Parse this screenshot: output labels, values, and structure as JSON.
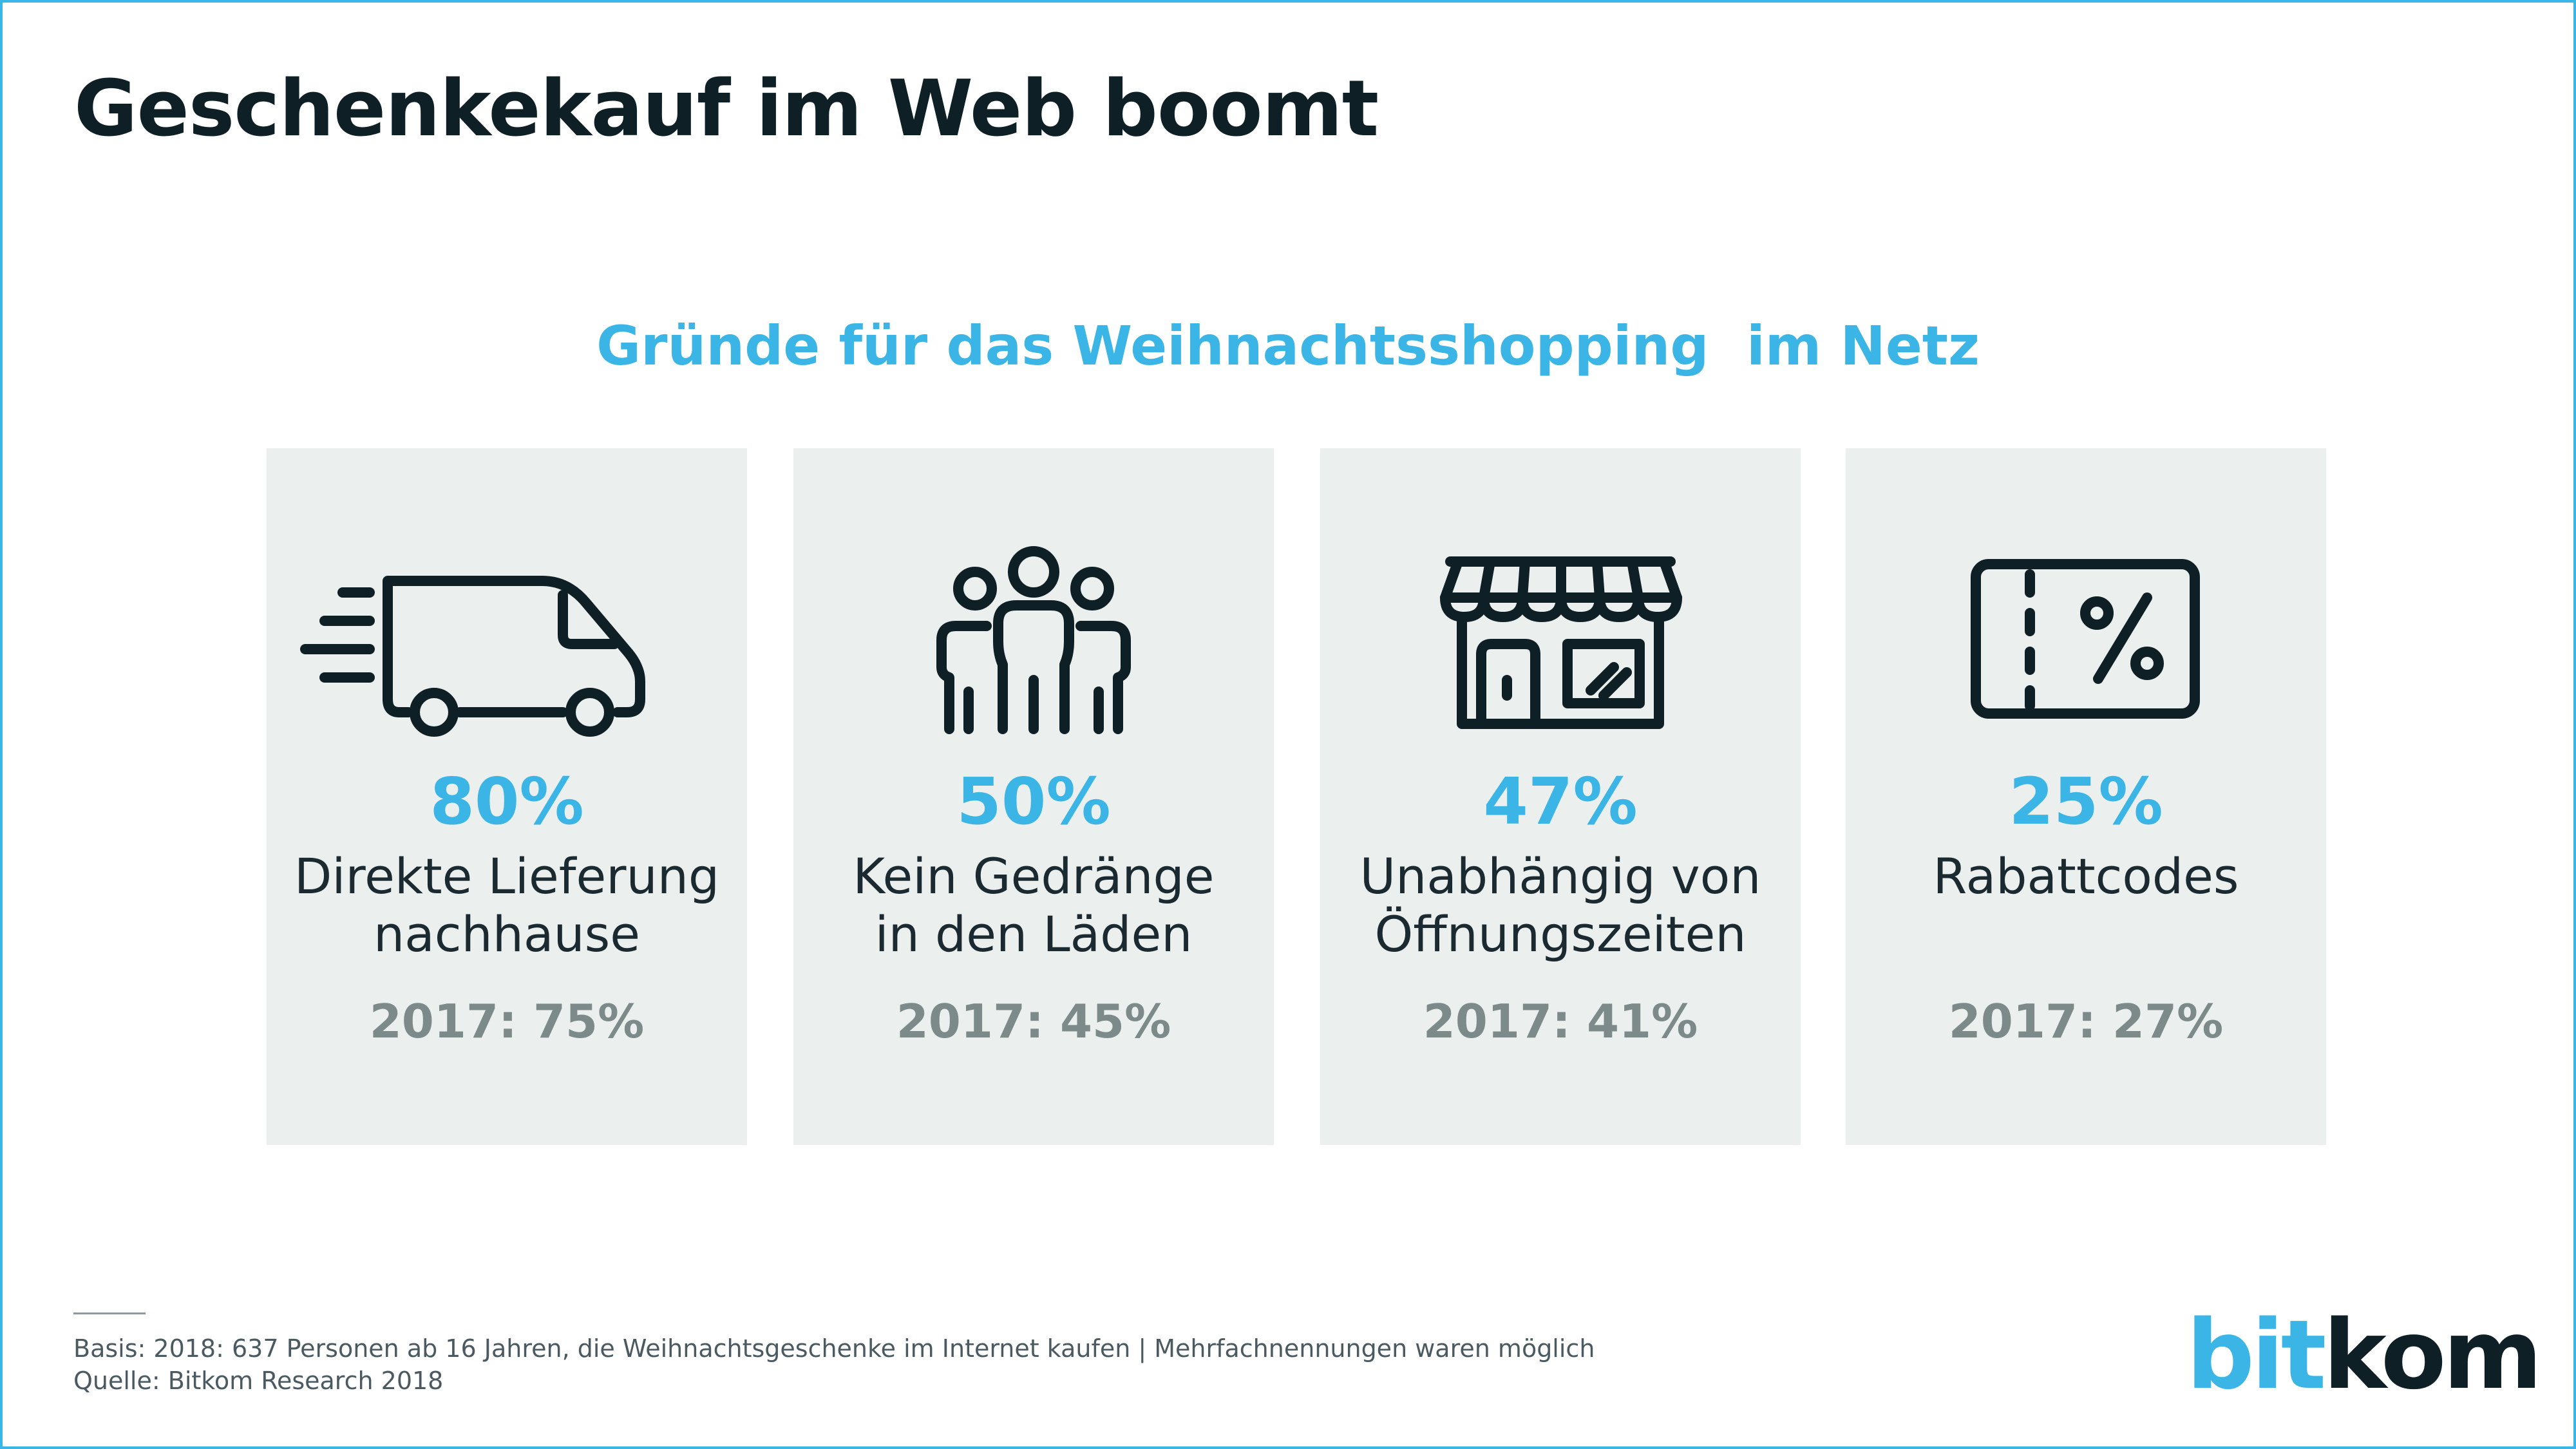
{
  "header": {
    "title": "Geschenkekauf im Web boomt"
  },
  "chart_data": {
    "type": "table",
    "title": "Gründe für das Weihnachtsshopping  im Netz",
    "categories": [
      "Direkte Lieferung nachhause",
      "Kein Gedränge in den Läden",
      "Unabhängig von Öffnungszeiten",
      "Rabattcodes"
    ],
    "series": [
      {
        "name": "2018",
        "values": [
          80,
          50,
          47,
          25
        ]
      },
      {
        "name": "2017",
        "values": [
          75,
          45,
          41,
          27
        ]
      }
    ],
    "unit": "%",
    "cards": [
      {
        "icon": "delivery-van-icon",
        "percent": "80%",
        "label_line1": "Direkte Lieferung",
        "label_line2": "nachhause",
        "prev": "2017: 75%"
      },
      {
        "icon": "crowd-people-icon",
        "percent": "50%",
        "label_line1": "Kein Gedränge",
        "label_line2": "in den Läden",
        "prev": "2017: 45%"
      },
      {
        "icon": "storefront-icon",
        "percent": "47%",
        "label_line1": "Unabhängig von",
        "label_line2": "Öffnungszeiten",
        "prev": "2017: 41%"
      },
      {
        "icon": "coupon-percent-icon",
        "percent": "25%",
        "label_line1": "Rabattcodes",
        "label_line2": "",
        "prev": "2017: 27%"
      }
    ]
  },
  "footer": {
    "basis": "Basis: 2018: 637 Personen ab 16 Jahren, die Weihnachtsgeschenke im Internet kaufen | Mehrfachnennungen waren möglich",
    "source": "Quelle: Bitkom Research 2018"
  },
  "logo": {
    "part1": "bit",
    "part2": "kom"
  },
  "colors": {
    "accent": "#3ab5e6",
    "dark": "#0e1f26",
    "card_bg": "#ebefee",
    "muted": "#7d8a8a",
    "frame": "#3ab5e6"
  }
}
